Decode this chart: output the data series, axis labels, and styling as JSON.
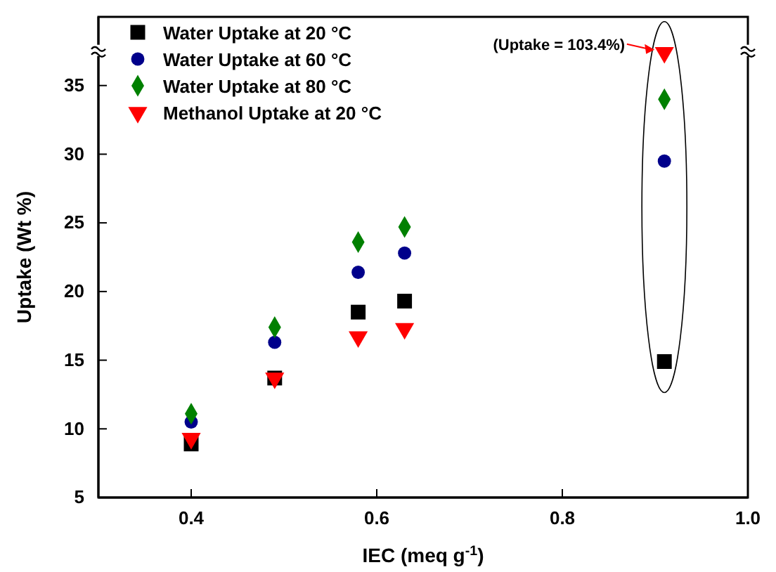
{
  "chart_data": {
    "type": "scatter",
    "xlabel": "IEC (meq g$^{-1}$)",
    "ylabel": "Uptake (Wt %)",
    "x": [
      0.4,
      0.49,
      0.58,
      0.63,
      0.91
    ],
    "series": [
      {
        "name": "Water Uptake at 20 °C",
        "color": "#000000",
        "marker": "square",
        "values": [
          8.9,
          13.7,
          18.5,
          19.3,
          14.9
        ]
      },
      {
        "name": "Water Uptake at 60 °C",
        "color": "#00008b",
        "marker": "circle",
        "values": [
          10.5,
          16.3,
          21.4,
          22.8,
          29.5
        ]
      },
      {
        "name": "Water Uptake at 80 °C",
        "color": "#008000",
        "marker": "diamond",
        "values": [
          11.1,
          17.4,
          23.6,
          24.7,
          34.0
        ]
      },
      {
        "name": "Methanol Uptake at 20 °C",
        "color": "#ff0000",
        "marker": "triangle",
        "values": [
          9.3,
          13.7,
          16.7,
          17.3,
          37.4
        ]
      }
    ],
    "annotations": [
      "(Uptake =  103.4%)"
    ],
    "xlim": [
      0.3,
      1.0
    ],
    "xticks": [
      0.4,
      0.6,
      0.8,
      {
        "value": 1.0,
        "label": "1.0"
      }
    ],
    "ylim": [
      5,
      40
    ],
    "yticks": [
      5,
      10,
      15,
      20,
      25,
      30,
      35
    ],
    "grid": false,
    "legend": "top left"
  }
}
